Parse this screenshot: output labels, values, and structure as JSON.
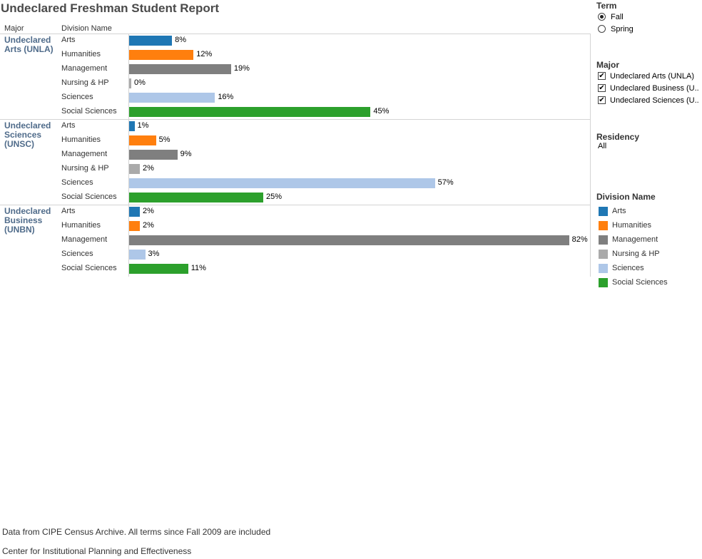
{
  "title": "Undeclared Freshman Student Report",
  "headers": {
    "major": "Major",
    "division": "Division Name"
  },
  "colors": {
    "Arts": "#1f77b4",
    "Humanities": "#ff7f0e",
    "Management": "#7f7f7f",
    "Nursing & HP": "#aaaaaa",
    "Sciences": "#aec7e8",
    "Social Sciences": "#2ca02c"
  },
  "chart_data": {
    "type": "bar",
    "orientation": "horizontal",
    "unit": "%",
    "groups": [
      {
        "major": "Undeclared Arts (UNLA)",
        "categories": [
          "Arts",
          "Humanities",
          "Management",
          "Nursing & HP",
          "Sciences",
          "Social Sciences"
        ],
        "values": [
          8,
          12,
          19,
          0,
          16,
          45
        ],
        "labels": [
          "8%",
          "12%",
          "19%",
          "0%",
          "16%",
          "45%"
        ]
      },
      {
        "major": "Undeclared Sciences (UNSC)",
        "categories": [
          "Arts",
          "Humanities",
          "Management",
          "Nursing & HP",
          "Sciences",
          "Social Sciences"
        ],
        "values": [
          1,
          5,
          9,
          2,
          57,
          25
        ],
        "labels": [
          "1%",
          "5%",
          "9%",
          "2%",
          "57%",
          "25%"
        ]
      },
      {
        "major": "Undeclared Business (UNBN)",
        "categories": [
          "Arts",
          "Humanities",
          "Management",
          "Sciences",
          "Social Sciences"
        ],
        "values": [
          2,
          2,
          82,
          3,
          11
        ],
        "labels": [
          "2%",
          "2%",
          "82%",
          "3%",
          "11%"
        ]
      }
    ]
  },
  "filters": {
    "term": {
      "title": "Term",
      "options": [
        "Fall",
        "Spring"
      ],
      "selected": "Fall"
    },
    "major": {
      "title": "Major",
      "options": [
        "Undeclared Arts (UNLA)",
        "Undeclared Business (U..",
        "Undeclared Sciences (U.."
      ],
      "checked": [
        true,
        true,
        true
      ]
    },
    "residency": {
      "title": "Residency",
      "value": "All"
    }
  },
  "legend": {
    "title": "Division Name",
    "items": [
      "Arts",
      "Humanities",
      "Management",
      "Nursing & HP",
      "Sciences",
      "Social Sciences"
    ]
  },
  "footer": {
    "line1": "Data from CIPE Census Archive. All terms since Fall 2009 are included",
    "line2": "Center for Institutional Planning and Effectiveness"
  }
}
